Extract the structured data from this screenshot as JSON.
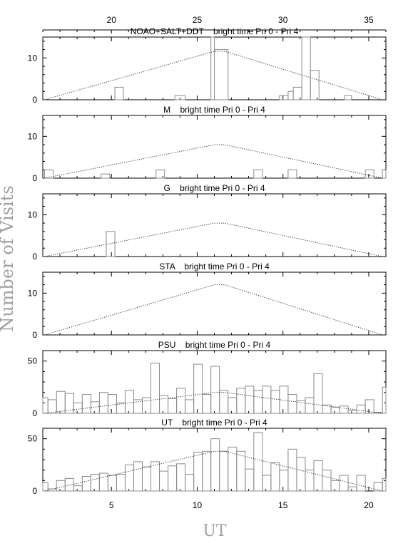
{
  "chart_data": {
    "type": "histogram",
    "ylabel": "Number of Visits",
    "xlabel": "UT",
    "x_range": [
      1,
      21
    ],
    "x_ticks": [
      5,
      10,
      15,
      20
    ],
    "top_axis_range": [
      16,
      36
    ],
    "top_axis_ticks": [
      20,
      25,
      30,
      35
    ],
    "panels": [
      {
        "title": "NOAO+SALT+DDT    bright time Pri 0 - Pri 4",
        "ylim": [
          0,
          15
        ],
        "yticks": [
          0,
          10
        ],
        "hist": [
          [
            5.2,
            5.7,
            3
          ],
          [
            8.7,
            9.3,
            1
          ],
          [
            10.8,
            11.0,
            15
          ],
          [
            11.0,
            11.8,
            12
          ],
          [
            14.8,
            15.3,
            1
          ],
          [
            15.3,
            15.6,
            2
          ],
          [
            15.6,
            16.1,
            3
          ],
          [
            16.1,
            16.6,
            15
          ],
          [
            16.6,
            17.1,
            7
          ],
          [
            18.6,
            19.0,
            1
          ]
        ],
        "model": [
          [
            1.1,
            0
          ],
          [
            11.0,
            11.6
          ],
          [
            11.6,
            11.6
          ],
          [
            20.8,
            0
          ]
        ]
      },
      {
        "title": "M    bright time Pri 0 - Pri 4",
        "ylim": [
          0,
          15
        ],
        "yticks": [
          0,
          10
        ],
        "hist": [
          [
            1.1,
            1.6,
            2
          ],
          [
            4.4,
            4.9,
            1
          ],
          [
            7.6,
            8.1,
            2
          ],
          [
            13.3,
            13.8,
            2
          ],
          [
            15.3,
            15.8,
            2
          ],
          [
            19.8,
            20.3,
            2
          ],
          [
            20.8,
            21.3,
            2
          ]
        ],
        "model": [
          [
            1.1,
            0
          ],
          [
            11.0,
            8
          ],
          [
            11.6,
            8
          ],
          [
            20.8,
            0
          ]
        ]
      },
      {
        "title": "G    bright time Pri 0 - Pri 4",
        "ylim": [
          0,
          15
        ],
        "yticks": [
          0,
          10
        ],
        "hist": [
          [
            4.7,
            5.2,
            6
          ]
        ],
        "model": [
          [
            1.1,
            0
          ],
          [
            11.0,
            8
          ],
          [
            11.6,
            8
          ],
          [
            20.8,
            0
          ]
        ]
      },
      {
        "title": "STA    bright time Pri 0 - Pri 4",
        "ylim": [
          0,
          15
        ],
        "yticks": [
          0,
          10
        ],
        "hist": [],
        "model": [
          [
            1.1,
            0
          ],
          [
            11.0,
            12
          ],
          [
            11.6,
            12
          ],
          [
            20.8,
            0
          ]
        ]
      },
      {
        "title": "PSU    bright time Pri 0 - Pri 4",
        "ylim": [
          0,
          60
        ],
        "yticks": [
          0,
          50
        ],
        "hist": [
          [
            1.0,
            1.3,
            15
          ],
          [
            1.3,
            1.8,
            13
          ],
          [
            1.8,
            2.3,
            21
          ],
          [
            2.3,
            2.8,
            19
          ],
          [
            2.8,
            3.3,
            10
          ],
          [
            3.3,
            3.8,
            18
          ],
          [
            3.8,
            4.3,
            11
          ],
          [
            4.3,
            4.8,
            20
          ],
          [
            4.8,
            5.3,
            18
          ],
          [
            5.3,
            5.8,
            10
          ],
          [
            5.8,
            6.3,
            22
          ],
          [
            6.3,
            6.8,
            13
          ],
          [
            6.8,
            7.3,
            15
          ],
          [
            7.3,
            7.8,
            48
          ],
          [
            7.8,
            8.3,
            17
          ],
          [
            8.3,
            8.8,
            14
          ],
          [
            8.8,
            9.3,
            24
          ],
          [
            9.3,
            9.8,
            13
          ],
          [
            9.8,
            10.3,
            47
          ],
          [
            10.3,
            10.8,
            18
          ],
          [
            10.8,
            11.3,
            45
          ],
          [
            11.3,
            11.8,
            22
          ],
          [
            11.8,
            12.3,
            15
          ],
          [
            12.3,
            12.8,
            24
          ],
          [
            12.8,
            13.3,
            26
          ],
          [
            13.3,
            13.8,
            22
          ],
          [
            13.8,
            14.3,
            26
          ],
          [
            14.3,
            14.8,
            22
          ],
          [
            14.8,
            15.3,
            26
          ],
          [
            15.3,
            15.8,
            18
          ],
          [
            15.8,
            16.3,
            12
          ],
          [
            16.3,
            16.8,
            15
          ],
          [
            16.8,
            17.3,
            38
          ],
          [
            17.3,
            17.8,
            8
          ],
          [
            17.8,
            18.3,
            6
          ],
          [
            18.3,
            18.8,
            7
          ],
          [
            18.8,
            19.3,
            3
          ],
          [
            19.3,
            19.8,
            8
          ],
          [
            19.8,
            20.3,
            13
          ],
          [
            20.3,
            20.8,
            1
          ],
          [
            20.8,
            21.0,
            25
          ]
        ],
        "model": [
          [
            1.1,
            0
          ],
          [
            11.0,
            20
          ],
          [
            11.6,
            20
          ],
          [
            20.8,
            0
          ]
        ]
      },
      {
        "title": "UT    bright time Pri 0 - Pri 4",
        "ylim": [
          0,
          60
        ],
        "yticks": [
          0,
          50
        ],
        "hist": [
          [
            1.0,
            1.3,
            8
          ],
          [
            1.3,
            1.8,
            2
          ],
          [
            1.8,
            2.3,
            10
          ],
          [
            2.3,
            2.8,
            12
          ],
          [
            2.8,
            3.3,
            5
          ],
          [
            3.3,
            3.8,
            14
          ],
          [
            3.8,
            4.3,
            16
          ],
          [
            4.3,
            4.8,
            17
          ],
          [
            4.8,
            5.3,
            15
          ],
          [
            5.3,
            5.8,
            16
          ],
          [
            5.8,
            6.3,
            25
          ],
          [
            6.3,
            6.8,
            28
          ],
          [
            6.8,
            7.3,
            23
          ],
          [
            7.3,
            7.8,
            28
          ],
          [
            7.8,
            8.3,
            19
          ],
          [
            8.3,
            8.8,
            24
          ],
          [
            8.8,
            9.3,
            26
          ],
          [
            9.3,
            9.8,
            16
          ],
          [
            9.8,
            10.3,
            37
          ],
          [
            10.3,
            10.8,
            38
          ],
          [
            10.8,
            11.3,
            50
          ],
          [
            11.3,
            11.8,
            38
          ],
          [
            11.8,
            12.3,
            42
          ],
          [
            12.3,
            12.8,
            38
          ],
          [
            12.8,
            13.3,
            21
          ],
          [
            13.3,
            13.8,
            56
          ],
          [
            13.8,
            14.3,
            15
          ],
          [
            14.3,
            14.8,
            27
          ],
          [
            14.8,
            15.3,
            20
          ],
          [
            15.3,
            15.8,
            40
          ],
          [
            15.8,
            16.3,
            32
          ],
          [
            16.3,
            16.8,
            20
          ],
          [
            16.8,
            17.3,
            29
          ],
          [
            17.3,
            17.8,
            20
          ],
          [
            17.8,
            18.3,
            10
          ],
          [
            18.3,
            18.8,
            15
          ],
          [
            18.8,
            19.3,
            4
          ],
          [
            19.3,
            19.8,
            15
          ],
          [
            19.8,
            20.3,
            0
          ],
          [
            20.3,
            20.8,
            8
          ],
          [
            20.8,
            21.0,
            12
          ]
        ],
        "model": [
          [
            1.1,
            0
          ],
          [
            11.0,
            38
          ],
          [
            11.6,
            38
          ],
          [
            20.8,
            0
          ]
        ]
      }
    ]
  }
}
